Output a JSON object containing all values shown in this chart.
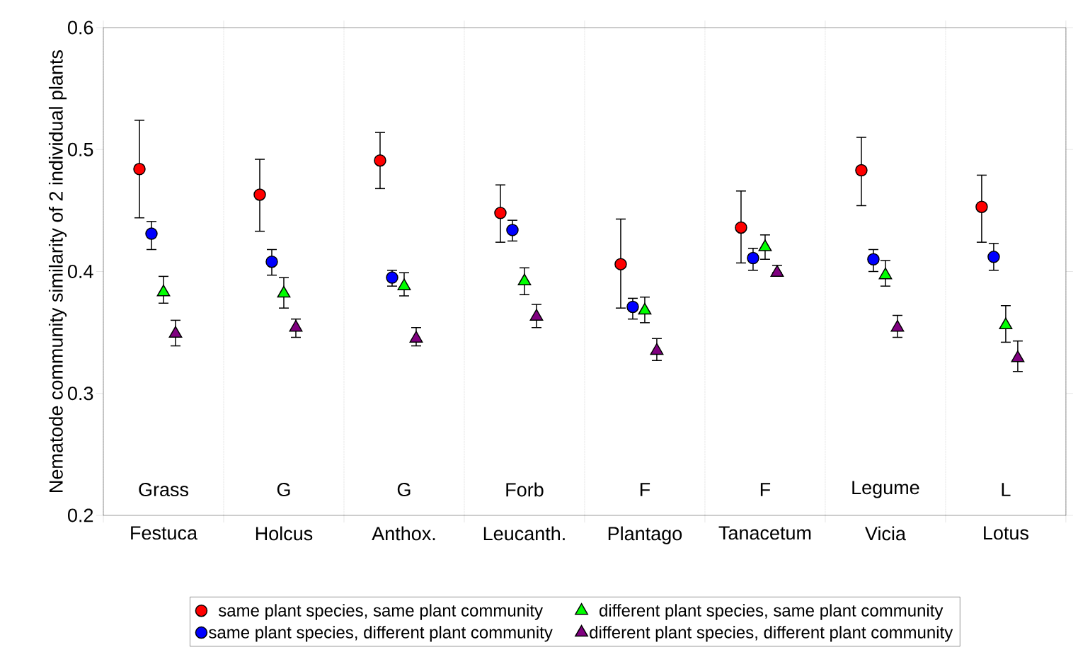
{
  "chart_data": {
    "type": "scatter",
    "ylabel": "Nematode community similarity of 2 individual plants",
    "categories": [
      "Festuca",
      "Holcus",
      "Anthox.",
      "Leucanth.",
      "Plantago",
      "Tanacetum",
      "Vicia",
      "Lotus"
    ],
    "ylim": [
      0.2,
      0.6
    ],
    "yticks": [
      0.2,
      0.3,
      0.4,
      0.5,
      0.6
    ],
    "grid": "x",
    "legend": "bottom",
    "annotations": [
      "Grass",
      "G",
      "G",
      "Forb",
      "F",
      "F",
      "Legume",
      "L"
    ],
    "series": [
      {
        "name": "same plant species, same plant community",
        "color": "#ff0000",
        "marker": "circle",
        "values": [
          0.484,
          0.463,
          0.491,
          0.448,
          0.406,
          0.436,
          0.483,
          0.453
        ],
        "errors": [
          [
            0.444,
            0.524
          ],
          [
            0.433,
            0.492
          ],
          [
            0.468,
            0.514
          ],
          [
            0.424,
            0.471
          ],
          [
            0.37,
            0.443
          ],
          [
            0.407,
            0.466
          ],
          [
            0.454,
            0.51
          ],
          [
            0.424,
            0.479
          ]
        ]
      },
      {
        "name": "same plant species, different plant community",
        "color": "#0000ff",
        "marker": "circle",
        "values": [
          0.431,
          0.408,
          0.395,
          0.434,
          0.371,
          0.411,
          0.41,
          0.412
        ],
        "errors": [
          [
            0.418,
            0.441
          ],
          [
            0.397,
            0.418
          ],
          [
            0.388,
            0.401
          ],
          [
            0.425,
            0.442
          ],
          [
            0.361,
            0.378
          ],
          [
            0.401,
            0.419
          ],
          [
            0.4,
            0.418
          ],
          [
            0.401,
            0.423
          ]
        ]
      },
      {
        "name": "different plant species, same plant community",
        "color": "#00ff00",
        "marker": "triangle",
        "values": [
          0.383,
          0.382,
          0.388,
          0.392,
          0.368,
          0.42,
          0.397,
          0.356
        ],
        "errors": [
          [
            0.374,
            0.396
          ],
          [
            0.37,
            0.395
          ],
          [
            0.38,
            0.399
          ],
          [
            0.381,
            0.403
          ],
          [
            0.358,
            0.379
          ],
          [
            0.41,
            0.43
          ],
          [
            0.388,
            0.409
          ],
          [
            0.342,
            0.372
          ]
        ]
      },
      {
        "name": "different plant species, different plant community",
        "color": "#800080",
        "marker": "triangle",
        "values": [
          0.349,
          0.354,
          0.345,
          0.363,
          0.335,
          0.399,
          0.354,
          0.329
        ],
        "errors": [
          [
            0.339,
            0.36
          ],
          [
            0.346,
            0.361
          ],
          [
            0.339,
            0.354
          ],
          [
            0.354,
            0.373
          ],
          [
            0.327,
            0.345
          ],
          [
            0.399,
            0.405
          ],
          [
            0.346,
            0.364
          ],
          [
            0.318,
            0.343
          ]
        ]
      }
    ]
  }
}
